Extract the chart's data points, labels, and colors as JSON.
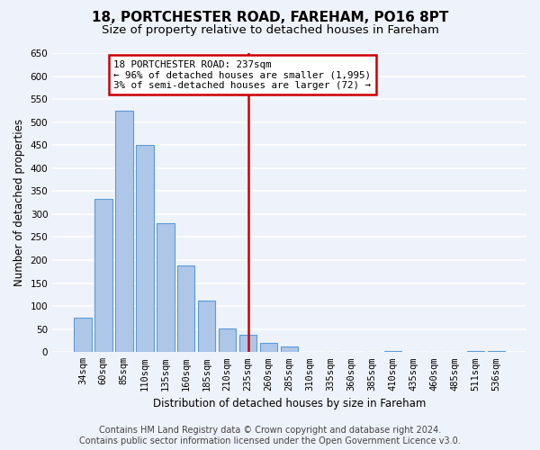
{
  "title": "18, PORTCHESTER ROAD, FAREHAM, PO16 8PT",
  "subtitle": "Size of property relative to detached houses in Fareham",
  "xlabel": "Distribution of detached houses by size in Fareham",
  "ylabel": "Number of detached properties",
  "bar_labels": [
    "34sqm",
    "60sqm",
    "85sqm",
    "110sqm",
    "135sqm",
    "160sqm",
    "185sqm",
    "210sqm",
    "235sqm",
    "260sqm",
    "285sqm",
    "310sqm",
    "335sqm",
    "360sqm",
    "385sqm",
    "410sqm",
    "435sqm",
    "460sqm",
    "485sqm",
    "511sqm",
    "536sqm"
  ],
  "bar_values": [
    75,
    333,
    525,
    450,
    280,
    188,
    113,
    52,
    37,
    20,
    13,
    0,
    0,
    0,
    0,
    2,
    0,
    0,
    0,
    2,
    2
  ],
  "bar_color": "#aec6e8",
  "bar_edge_color": "#5b9bd5",
  "vline_x": 8,
  "vline_color": "#cc0000",
  "annotation_text": "18 PORTCHESTER ROAD: 237sqm\n← 96% of detached houses are smaller (1,995)\n3% of semi-detached houses are larger (72) →",
  "annotation_box_color": "#ffffff",
  "annotation_box_edge_color": "#cc0000",
  "ylim": [
    0,
    650
  ],
  "yticks": [
    0,
    50,
    100,
    150,
    200,
    250,
    300,
    350,
    400,
    450,
    500,
    550,
    600,
    650
  ],
  "footer_text": "Contains HM Land Registry data © Crown copyright and database right 2024.\nContains public sector information licensed under the Open Government Licence v3.0.",
  "bg_color": "#eef2fa",
  "plot_bg_color": "#eef2fa",
  "grid_color": "#ffffff",
  "title_fontsize": 11,
  "subtitle_fontsize": 9.5,
  "label_fontsize": 8.5,
  "tick_fontsize": 7.5,
  "footer_fontsize": 7
}
